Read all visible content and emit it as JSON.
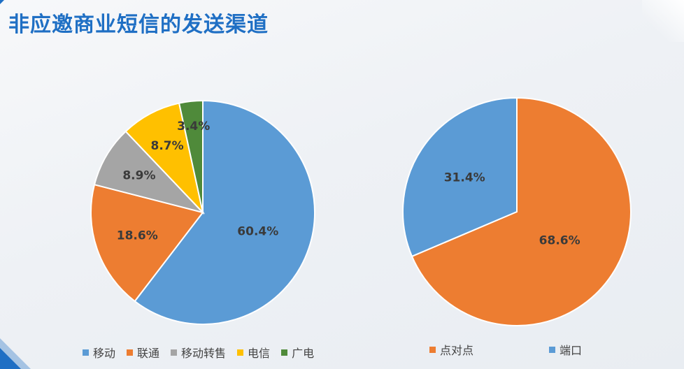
{
  "slide": {
    "title": "非应邀商业短信的发送渠道"
  },
  "chart_data": [
    {
      "type": "pie",
      "title": "",
      "categories": [
        "移动",
        "联通",
        "移动转售",
        "电信",
        "广电"
      ],
      "values": [
        60.4,
        18.6,
        8.9,
        8.7,
        3.4
      ],
      "labels": [
        "60.4%",
        "18.6%",
        "8.9%",
        "8.7%",
        "3.4%"
      ],
      "colors": [
        "#5b9bd5",
        "#ed7d31",
        "#a5a5a5",
        "#ffc000",
        "#4f8a3a"
      ],
      "legend": "bottom"
    },
    {
      "type": "pie",
      "title": "",
      "categories": [
        "点对点",
        "端口"
      ],
      "values": [
        68.6,
        31.4
      ],
      "labels": [
        "68.6%",
        "31.4%"
      ],
      "colors": [
        "#ed7d31",
        "#5b9bd5"
      ],
      "legend": "bottom"
    }
  ]
}
